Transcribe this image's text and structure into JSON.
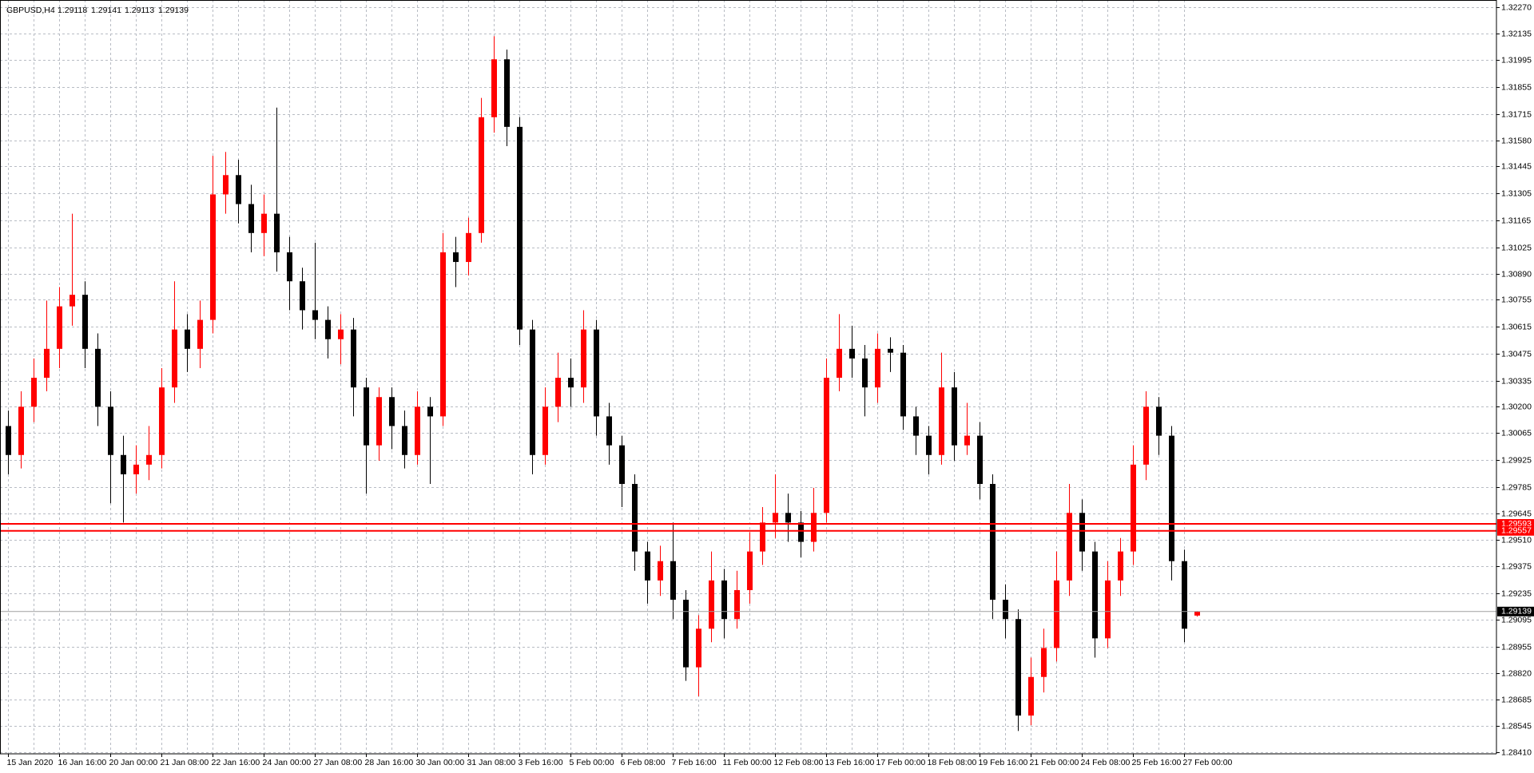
{
  "chart_data": {
    "type": "candlestick",
    "title": "GBPUSD,H4",
    "x": [
      "15 Jan 2020",
      null,
      null,
      null,
      "16 Jan 16:00",
      null,
      null,
      null,
      "20 Jan 00:00",
      null,
      null,
      null,
      "21 Jan 08:00",
      null,
      null,
      null,
      "22 Jan 16:00",
      null,
      null,
      null,
      "24 Jan 00:00",
      null,
      null,
      null,
      "27 Jan 08:00",
      null,
      null,
      null,
      "28 Jan 16:00",
      null,
      null,
      null,
      "30 Jan 00:00",
      null,
      null,
      null,
      "31 Jan 08:00",
      null,
      null,
      null,
      "3 Feb 16:00",
      null,
      null,
      null,
      "5 Feb 00:00",
      null,
      null,
      null,
      "6 Feb 08:00",
      null,
      null,
      null,
      "7 Feb 16:00",
      null,
      null,
      null,
      "11 Feb 00:00",
      null,
      null,
      null,
      "12 Feb 08:00",
      null,
      null,
      null,
      "13 Feb 16:00",
      null,
      null,
      null,
      "17 Feb 00:00",
      null,
      null,
      null,
      "18 Feb 08:00",
      null,
      null,
      null,
      "19 Feb 16:00",
      null,
      null,
      null,
      "21 Feb 00:00",
      null,
      null,
      null,
      "24 Feb 08:00",
      null,
      null,
      null,
      "25 Feb 16:00",
      null,
      null,
      null,
      "27 Feb 00:00",
      null
    ],
    "open": [
      1.301,
      1.2995,
      1.302,
      1.3035,
      1.305,
      1.3072,
      1.3078,
      1.305,
      1.302,
      1.2995,
      1.2985,
      1.299,
      1.2995,
      1.303,
      1.306,
      1.305,
      1.3065,
      1.313,
      1.314,
      1.3125,
      1.311,
      1.312,
      1.31,
      1.3085,
      1.307,
      1.3065,
      1.3055,
      1.306,
      1.303,
      1.3,
      1.3025,
      1.301,
      1.2995,
      1.302,
      1.3015,
      1.31,
      1.3095,
      1.311,
      1.317,
      1.32,
      1.3165,
      1.306,
      1.2995,
      1.302,
      1.3035,
      1.303,
      1.306,
      1.3015,
      1.3,
      1.298,
      1.2945,
      1.293,
      1.294,
      1.292,
      1.2885,
      1.2905,
      1.293,
      1.291,
      1.2925,
      1.2945,
      1.296,
      1.2965,
      1.296,
      1.295,
      1.2965,
      1.3035,
      1.305,
      1.3045,
      1.303,
      1.305,
      1.3048,
      1.3015,
      1.3005,
      1.2995,
      1.303,
      1.3,
      1.3005,
      1.298,
      1.292,
      1.291,
      1.286,
      1.288,
      1.2895,
      1.293,
      1.2965,
      1.2945,
      1.29,
      1.293,
      1.2945,
      1.299,
      1.302,
      1.3005,
      1.294,
      1.29118
    ],
    "high": [
      1.3018,
      1.3028,
      1.3045,
      1.3075,
      1.3082,
      1.312,
      1.3085,
      1.3058,
      1.3028,
      1.3005,
      1.3,
      1.301,
      1.304,
      1.3085,
      1.3068,
      1.3075,
      1.315,
      1.3152,
      1.3148,
      1.3135,
      1.313,
      1.3175,
      1.3108,
      1.3092,
      1.3105,
      1.3072,
      1.3068,
      1.3066,
      1.3035,
      1.303,
      1.303,
      1.3018,
      1.3028,
      1.3025,
      1.311,
      1.3108,
      1.3118,
      1.318,
      1.3212,
      1.3205,
      1.317,
      1.3065,
      1.303,
      1.3048,
      1.3045,
      1.307,
      1.3065,
      1.3022,
      1.3005,
      1.2985,
      1.295,
      1.2948,
      1.296,
      1.2925,
      1.2912,
      1.2945,
      1.2936,
      1.2935,
      1.2955,
      1.2968,
      1.2985,
      1.2975,
      1.2966,
      1.2978,
      1.3045,
      1.3068,
      1.3062,
      1.3052,
      1.3058,
      1.3056,
      1.3052,
      1.302,
      1.301,
      1.3048,
      1.3038,
      1.3022,
      1.3012,
      1.2985,
      1.2928,
      1.2915,
      1.289,
      1.2905,
      1.2945,
      1.298,
      1.2972,
      1.295,
      1.294,
      1.2952,
      1.3,
      1.3028,
      1.3025,
      1.301,
      1.2946,
      1.29141
    ],
    "low": [
      1.2985,
      1.2988,
      1.3012,
      1.3028,
      1.304,
      1.3062,
      1.304,
      1.301,
      1.297,
      1.296,
      1.2975,
      1.2982,
      1.2988,
      1.3022,
      1.3038,
      1.304,
      1.3058,
      1.312,
      1.3115,
      1.31,
      1.3098,
      1.309,
      1.307,
      1.306,
      1.3055,
      1.3045,
      1.3042,
      1.3015,
      1.2975,
      1.2992,
      1.2998,
      1.2988,
      1.299,
      1.298,
      1.301,
      1.3082,
      1.3088,
      1.3105,
      1.3162,
      1.3155,
      1.3052,
      1.2985,
      1.299,
      1.3012,
      1.302,
      1.3022,
      1.3005,
      1.299,
      1.2968,
      1.2935,
      1.2918,
      1.2922,
      1.291,
      1.2878,
      1.287,
      1.2898,
      1.29,
      1.2905,
      1.2918,
      1.2938,
      1.2952,
      1.295,
      1.2942,
      1.2945,
      1.296,
      1.3028,
      1.3035,
      1.3015,
      1.3022,
      1.3038,
      1.3008,
      1.2995,
      1.2985,
      1.299,
      1.2992,
      1.2995,
      1.2972,
      1.291,
      1.29,
      1.2852,
      1.2855,
      1.2872,
      1.2888,
      1.2922,
      1.2935,
      1.289,
      1.2895,
      1.2922,
      1.2938,
      1.2982,
      1.2995,
      1.293,
      1.2898,
      1.29113
    ],
    "close": [
      1.2995,
      1.302,
      1.3035,
      1.305,
      1.3072,
      1.3078,
      1.305,
      1.302,
      1.2995,
      1.2985,
      1.299,
      1.2995,
      1.303,
      1.306,
      1.305,
      1.3065,
      1.313,
      1.314,
      1.3125,
      1.311,
      1.312,
      1.31,
      1.3085,
      1.307,
      1.3065,
      1.3055,
      1.306,
      1.303,
      1.3,
      1.3025,
      1.301,
      1.2995,
      1.302,
      1.3015,
      1.31,
      1.3095,
      1.311,
      1.317,
      1.32,
      1.3165,
      1.306,
      1.2995,
      1.302,
      1.3035,
      1.303,
      1.306,
      1.3015,
      1.3,
      1.298,
      1.2945,
      1.293,
      1.294,
      1.292,
      1.2885,
      1.2905,
      1.293,
      1.291,
      1.2925,
      1.2945,
      1.296,
      1.2965,
      1.296,
      1.295,
      1.2965,
      1.3035,
      1.305,
      1.3045,
      1.303,
      1.305,
      1.3048,
      1.3015,
      1.3005,
      1.2995,
      1.303,
      1.3,
      1.3005,
      1.298,
      1.292,
      1.291,
      1.286,
      1.288,
      1.2895,
      1.293,
      1.2965,
      1.2945,
      1.29,
      1.293,
      1.2945,
      1.299,
      1.302,
      1.3005,
      1.294,
      1.2905,
      1.29139
    ],
    "up_color": "#ff0000",
    "down_color": "#000000",
    "ylim": [
      1.2841,
      1.3227
    ],
    "yticks": [
      {
        "value": 1.3227,
        "label": "1.32270"
      },
      1.32135,
      1.31995,
      1.31855,
      1.31715,
      {
        "value": 1.3158,
        "label": "1.31580"
      },
      1.31445,
      1.31305,
      1.31165,
      1.31025,
      {
        "value": 1.3089,
        "label": "1.30890"
      },
      1.30755,
      1.30615,
      1.30475,
      1.30335,
      {
        "value": 1.302,
        "label": "1.30200"
      },
      1.30065,
      1.29925,
      1.29785,
      1.29645,
      {
        "value": 1.2951,
        "label": "1.29510"
      },
      1.29375,
      1.29235,
      1.29095,
      1.28955,
      {
        "value": 1.2882,
        "label": "1.28820"
      },
      1.28685,
      1.28545,
      {
        "value": 1.2841,
        "label": "1.28410"
      }
    ],
    "levels": [
      1.29593,
      1.29557
    ],
    "level_color": "#ff0000",
    "grid": true
  }
}
